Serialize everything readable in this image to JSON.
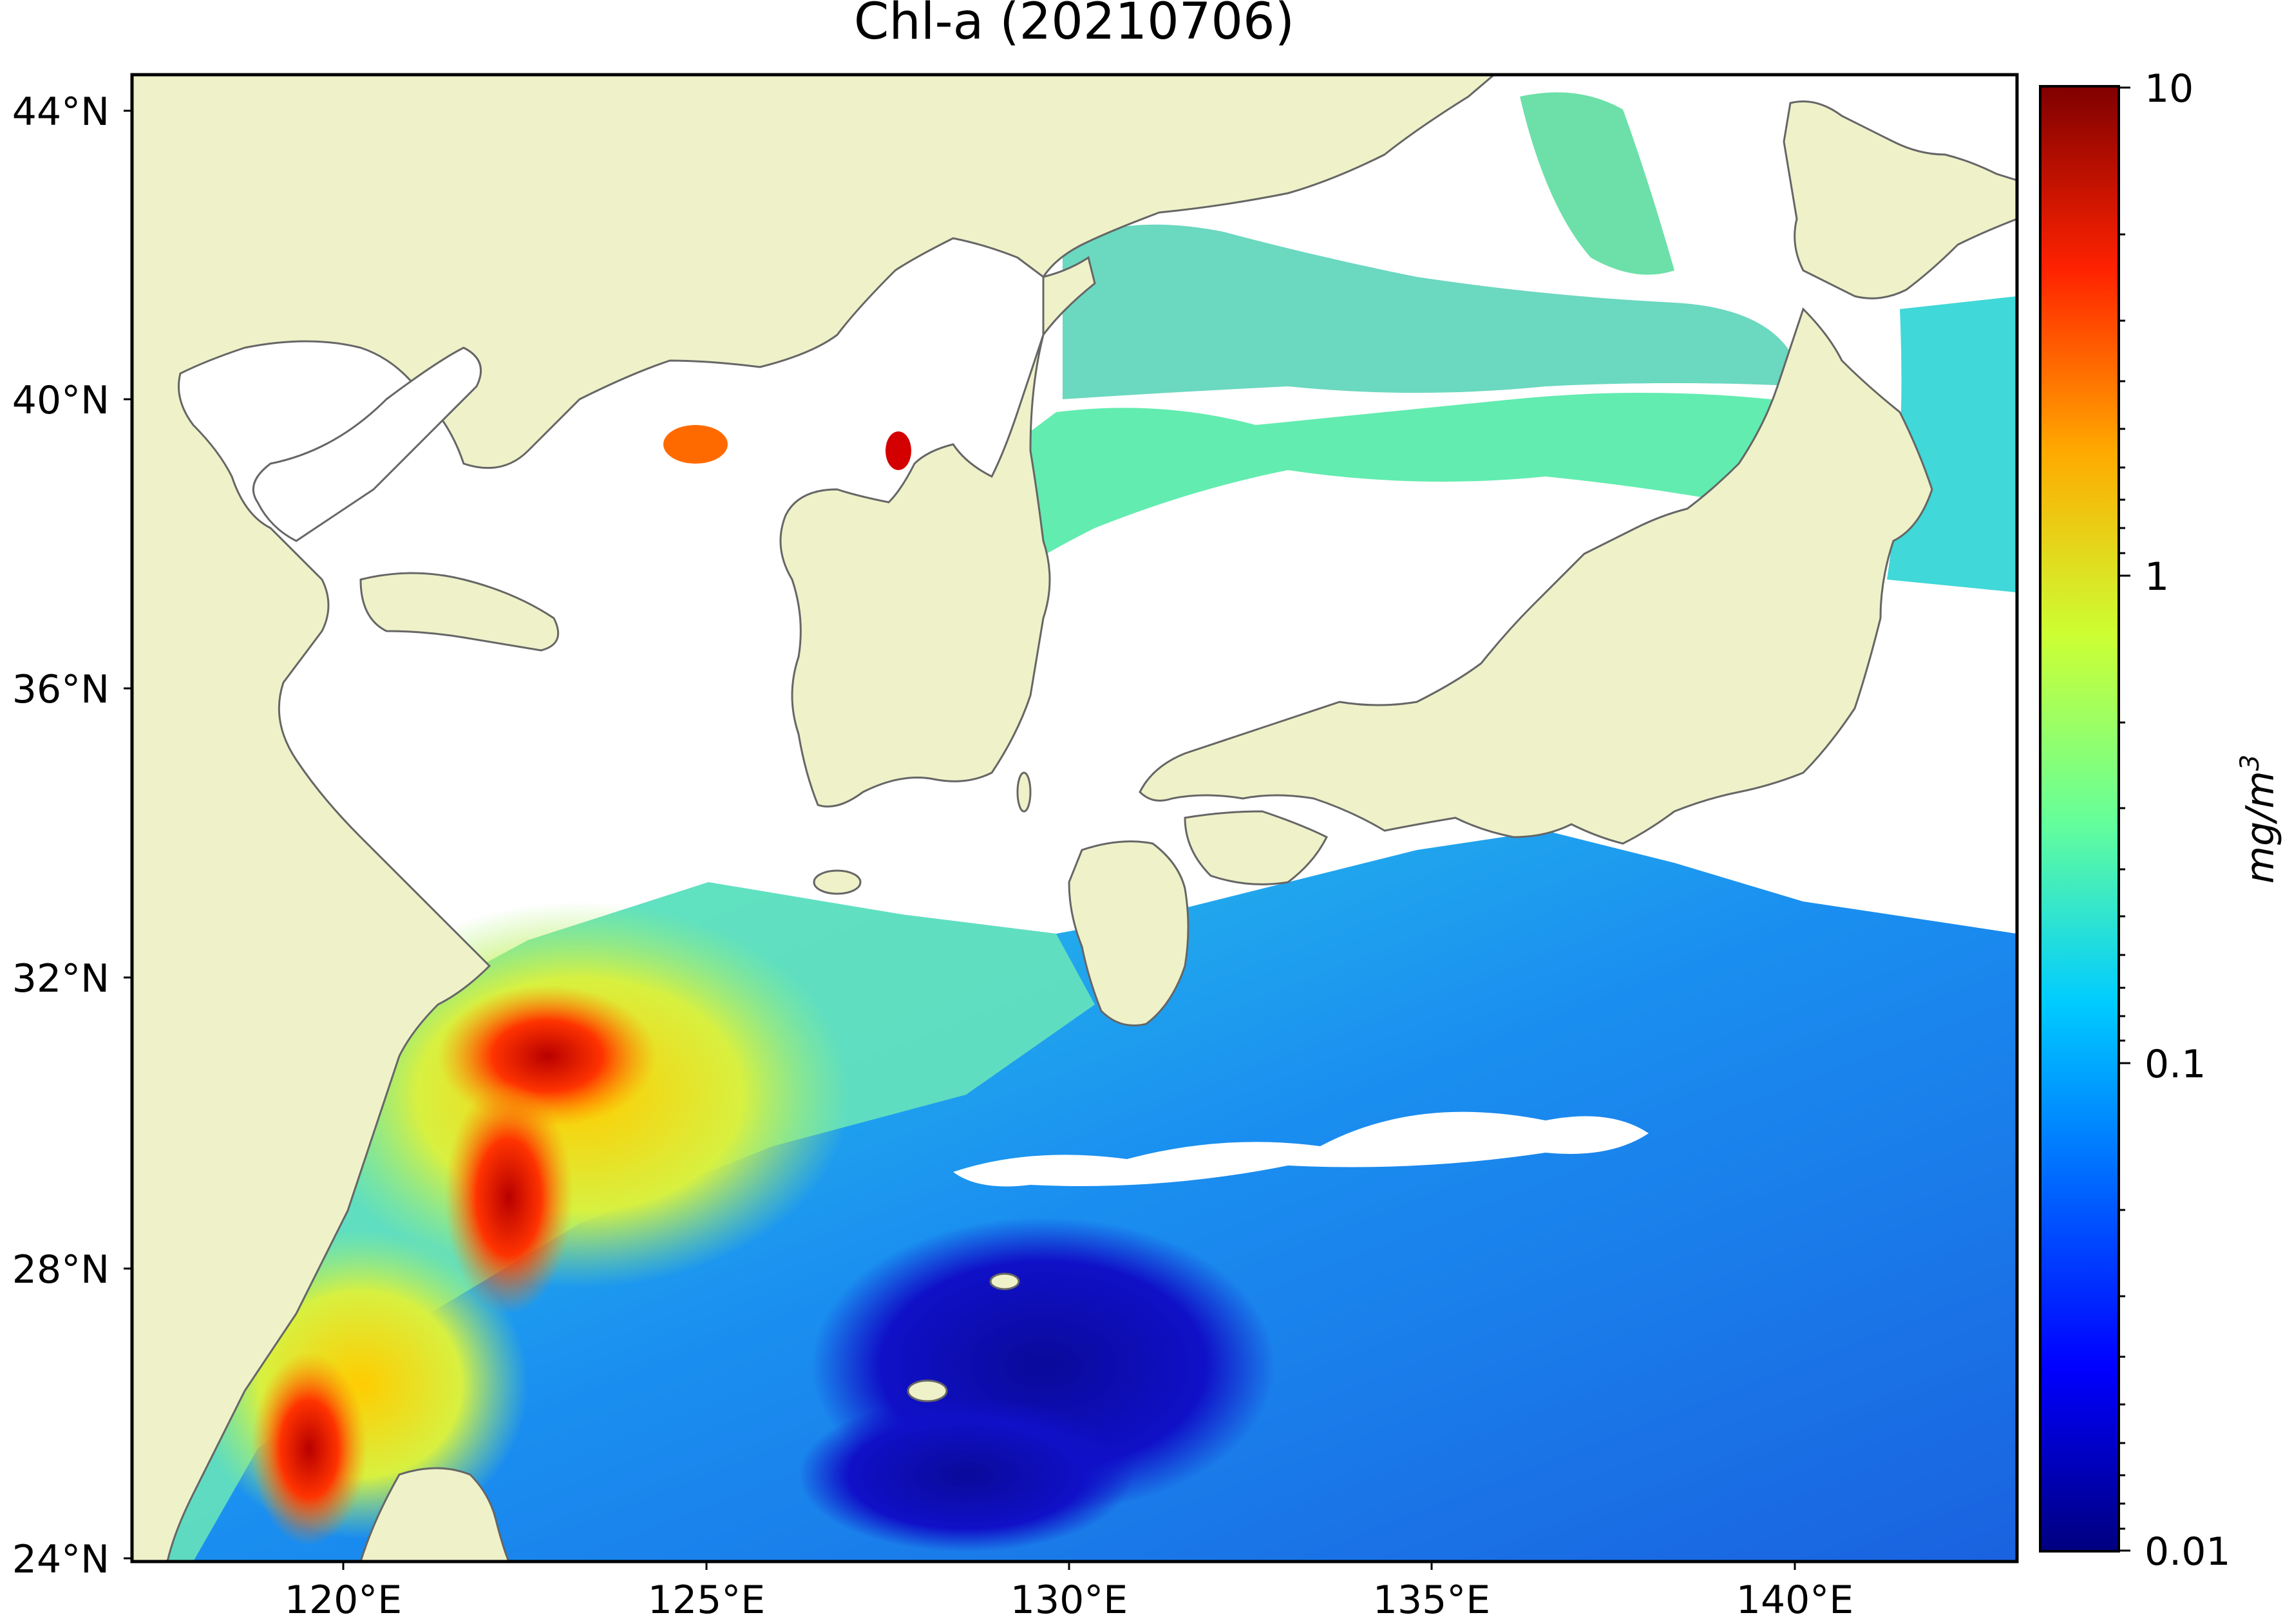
{
  "title": "Chl-a (20210706)",
  "map": {
    "lat_ticks": [
      "44°N",
      "40°N",
      "36°N",
      "32°N",
      "28°N",
      "24°N"
    ],
    "lon_ticks": [
      "120°E",
      "125°E",
      "130°E",
      "135°E",
      "140°E"
    ],
    "lat_range": [
      24,
      44.6
    ],
    "lon_range": [
      116.9,
      143.2
    ],
    "land_color": "#eff2c9",
    "nodata_color": "#ffffff",
    "coast_color": "#666666"
  },
  "colorbar": {
    "label": "mg/m3",
    "ticks": [
      "10",
      "1",
      "0.1",
      "0.01"
    ],
    "scale": "log",
    "range": [
      0.01,
      10
    ],
    "colormap": "jet",
    "stops": [
      "#00007f",
      "#0000ff",
      "#007fff",
      "#00ffff",
      "#7fff7f",
      "#ffff00",
      "#ff7f00",
      "#ff0000",
      "#7f0000"
    ]
  }
}
